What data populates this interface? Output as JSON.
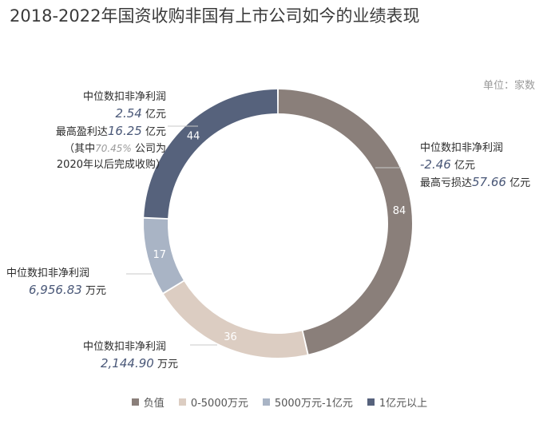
{
  "title": "2018-2022年国资收购非国有上市公司如今的业绩表现",
  "unit_label": "单位：家数",
  "chart_data": {
    "type": "donut",
    "categories": [
      "负值",
      "0-5000万元",
      "5000万元-1亿元",
      "1亿元以上"
    ],
    "values": [
      84,
      36,
      17,
      44
    ],
    "colors": [
      "#8a7f7a",
      "#dccdc2",
      "#a9b4c5",
      "#56627c"
    ]
  },
  "annotations": {
    "top_left": {
      "line1": "中位数扣非净利润",
      "value": "2.54",
      "unit": "亿元",
      "line3_prefix": "最高盈利达",
      "max": "16.25",
      "max_unit": "亿元",
      "note_prefix": "（其中",
      "note_pct": "70.45%",
      "note_suffix": "公司为",
      "note_line2": "2020年以后完成收购）"
    },
    "right": {
      "line1": "中位数扣非净利润",
      "value": "-2.46",
      "unit": "亿元",
      "line3_prefix": "最高亏损达",
      "max": "57.66",
      "max_unit": "亿元"
    },
    "middle_left": {
      "line1": "中位数扣非净利润",
      "value": "6,956.83",
      "unit": "万元"
    },
    "bottom": {
      "line1": "中位数扣非净利润",
      "value": "2,144.90",
      "unit": "万元"
    }
  }
}
